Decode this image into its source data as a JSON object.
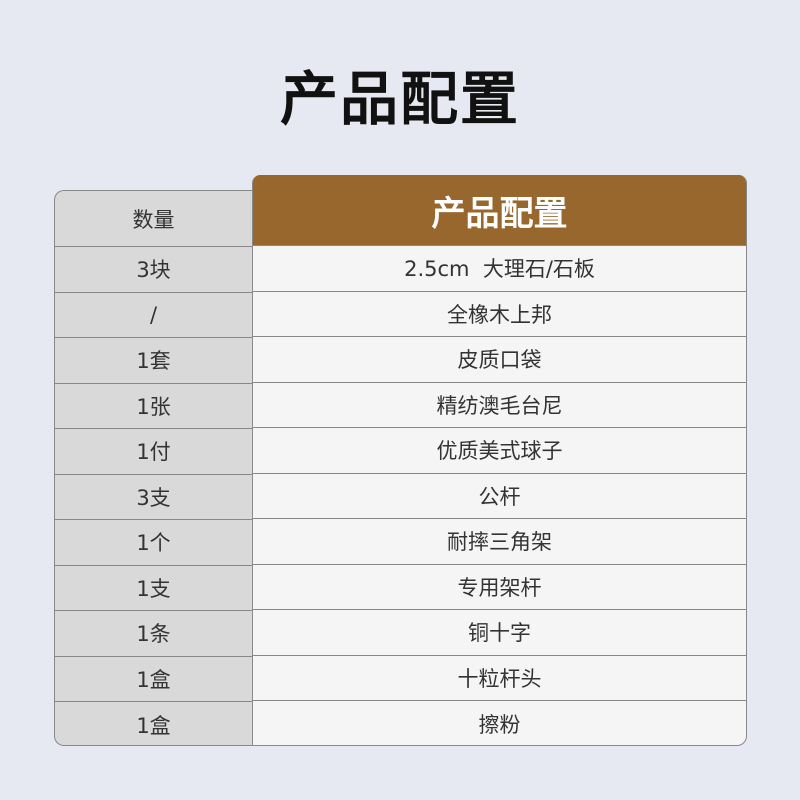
{
  "title": "产品配置",
  "table": {
    "headers": {
      "quantity": "数量",
      "item": "产品配置"
    },
    "colors": {
      "header": "#98672e",
      "left_column": "#d9d9d9",
      "right_column": "#f5f5f5"
    },
    "rows": [
      {
        "quantity": "3块",
        "item": "2.5cm  大理石/石板"
      },
      {
        "quantity": "/",
        "item": "全橡木上邦"
      },
      {
        "quantity": "1套",
        "item": "皮质口袋"
      },
      {
        "quantity": "1张",
        "item": "精纺澳毛台尼"
      },
      {
        "quantity": "1付",
        "item": "优质美式球子"
      },
      {
        "quantity": "3支",
        "item": "公杆"
      },
      {
        "quantity": "1个",
        "item": "耐摔三角架"
      },
      {
        "quantity": "1支",
        "item": "专用架杆"
      },
      {
        "quantity": "1条",
        "item": "铜十字"
      },
      {
        "quantity": "1盒",
        "item": "十粒杆头"
      },
      {
        "quantity": "1盒",
        "item": "擦粉"
      }
    ]
  }
}
